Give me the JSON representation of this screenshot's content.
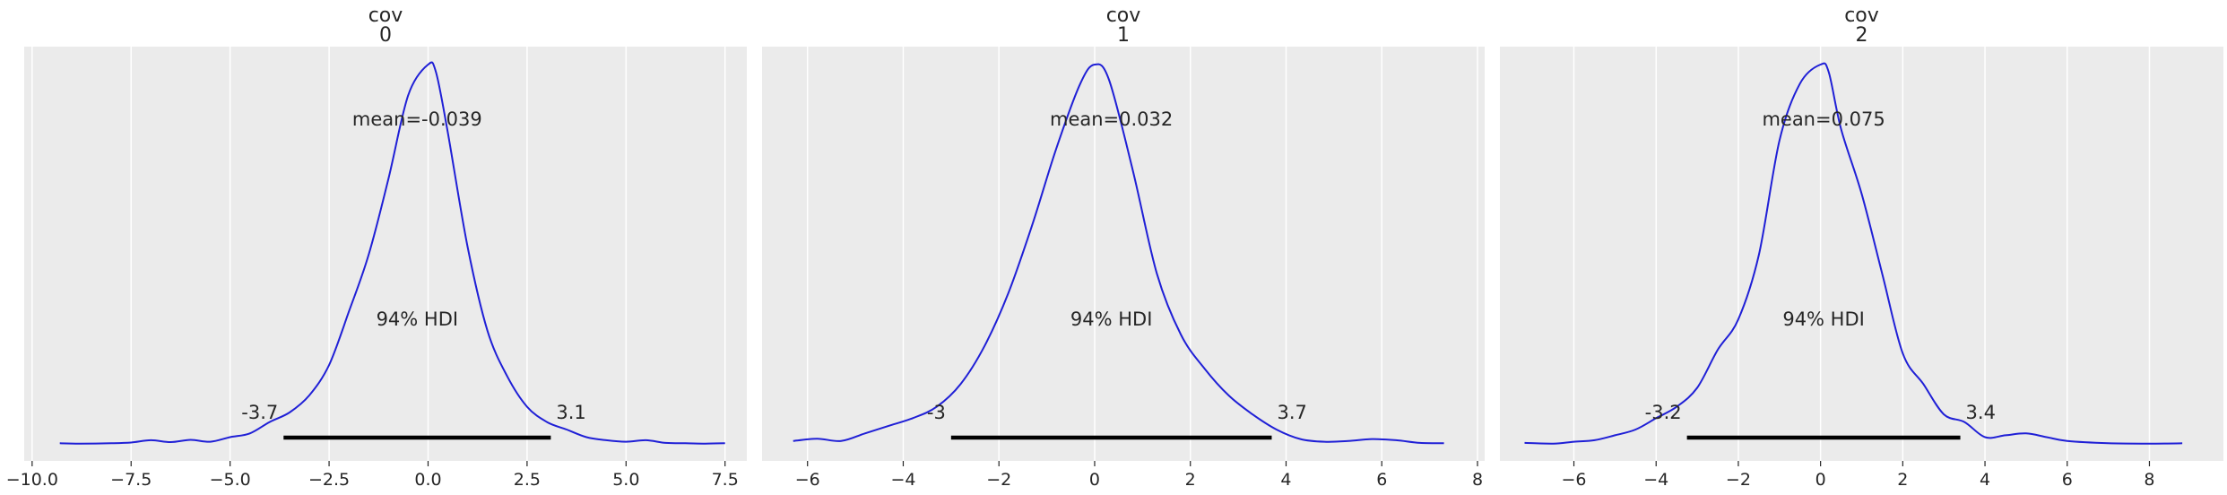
{
  "chart_data": [
    {
      "type": "area",
      "title": [
        "cov",
        "0"
      ],
      "xlim": [
        -10.2,
        8.05
      ],
      "xticks": [
        -10.0,
        -7.5,
        -5.0,
        -2.5,
        0.0,
        2.5,
        5.0,
        7.5
      ],
      "xtick_labels": [
        "−10.0",
        "−7.5",
        "−5.0",
        "−2.5",
        "0.0",
        "2.5",
        "5.0",
        "7.5"
      ],
      "mean_label": "mean=-0.039",
      "hdi_label": "94% HDI",
      "hdi": [
        -3.65,
        3.1
      ],
      "hdi_low_label": "-3.7",
      "hdi_high_label": "3.1",
      "x": [
        -9.3,
        -8.8,
        -8.0,
        -7.5,
        -7.0,
        -6.5,
        -6.0,
        -5.5,
        -5.0,
        -4.5,
        -4.0,
        -3.5,
        -3.0,
        -2.5,
        -2.0,
        -1.5,
        -1.0,
        -0.5,
        0.0,
        0.2,
        0.5,
        1.0,
        1.5,
        2.0,
        2.5,
        3.0,
        3.5,
        4.0,
        4.5,
        5.0,
        5.5,
        6.0,
        6.5,
        7.0,
        7.5
      ],
      "y": [
        0.004,
        0.003,
        0.004,
        0.006,
        0.012,
        0.007,
        0.013,
        0.008,
        0.02,
        0.03,
        0.06,
        0.085,
        0.13,
        0.21,
        0.35,
        0.5,
        0.7,
        0.92,
        1.0,
        0.98,
        0.82,
        0.52,
        0.3,
        0.18,
        0.1,
        0.06,
        0.04,
        0.02,
        0.012,
        0.008,
        0.012,
        0.005,
        0.004,
        0.003,
        0.004
      ]
    },
    {
      "type": "area",
      "title": [
        "cov",
        "1"
      ],
      "xlim": [
        -6.95,
        8.15
      ],
      "xticks": [
        -6,
        -4,
        -2,
        0,
        2,
        4,
        6,
        8
      ],
      "xtick_labels": [
        "−6",
        "−4",
        "−2",
        "0",
        "2",
        "4",
        "6",
        "8"
      ],
      "mean_label": "mean=0.032",
      "hdi_label": "94% HDI",
      "hdi": [
        -3.0,
        3.7
      ],
      "hdi_low_label": "-3",
      "hdi_high_label": "3.7",
      "x": [
        -6.3,
        -5.8,
        -5.3,
        -4.8,
        -4.3,
        -3.8,
        -3.3,
        -2.8,
        -2.3,
        -1.8,
        -1.3,
        -0.8,
        -0.3,
        0.0,
        0.3,
        0.8,
        1.3,
        1.8,
        2.3,
        2.8,
        3.3,
        3.8,
        4.3,
        4.8,
        5.3,
        5.8,
        6.3,
        6.8,
        7.3
      ],
      "y": [
        0.01,
        0.016,
        0.01,
        0.03,
        0.05,
        0.07,
        0.1,
        0.16,
        0.26,
        0.4,
        0.58,
        0.78,
        0.95,
        1.0,
        0.96,
        0.72,
        0.45,
        0.29,
        0.2,
        0.13,
        0.08,
        0.04,
        0.015,
        0.008,
        0.01,
        0.015,
        0.012,
        0.005,
        0.004
      ]
    },
    {
      "type": "area",
      "title": [
        "cov",
        "2"
      ],
      "xlim": [
        -7.8,
        9.8
      ],
      "xticks": [
        -6,
        -4,
        -2,
        0,
        2,
        4,
        6,
        8
      ],
      "xtick_labels": [
        "−6",
        "−4",
        "−2",
        "0",
        "2",
        "4",
        "6",
        "8"
      ],
      "mean_label": "mean=0.075",
      "hdi_label": "94% HDI",
      "hdi": [
        -3.25,
        3.4
      ],
      "hdi_low_label": "-3.2",
      "hdi_high_label": "3.4",
      "x": [
        -7.2,
        -6.5,
        -6.0,
        -5.5,
        -5.0,
        -4.5,
        -4.0,
        -3.5,
        -3.0,
        -2.5,
        -2.0,
        -1.5,
        -1.0,
        -0.5,
        0.0,
        0.2,
        0.5,
        1.0,
        1.5,
        2.0,
        2.5,
        3.0,
        3.5,
        4.0,
        4.5,
        5.0,
        5.5,
        6.0,
        7.0,
        8.0,
        8.8
      ],
      "y": [
        0.005,
        0.003,
        0.008,
        0.012,
        0.025,
        0.04,
        0.07,
        0.1,
        0.15,
        0.25,
        0.33,
        0.5,
        0.8,
        0.95,
        1.0,
        0.98,
        0.83,
        0.66,
        0.45,
        0.24,
        0.16,
        0.08,
        0.06,
        0.02,
        0.025,
        0.03,
        0.02,
        0.01,
        0.004,
        0.003,
        0.004
      ]
    }
  ],
  "colors": {
    "panel_bg": "#ebebeb",
    "grid": "#ffffff",
    "curve": "#1f1fd6",
    "hdi_bar": "#000000",
    "text": "#262626"
  }
}
